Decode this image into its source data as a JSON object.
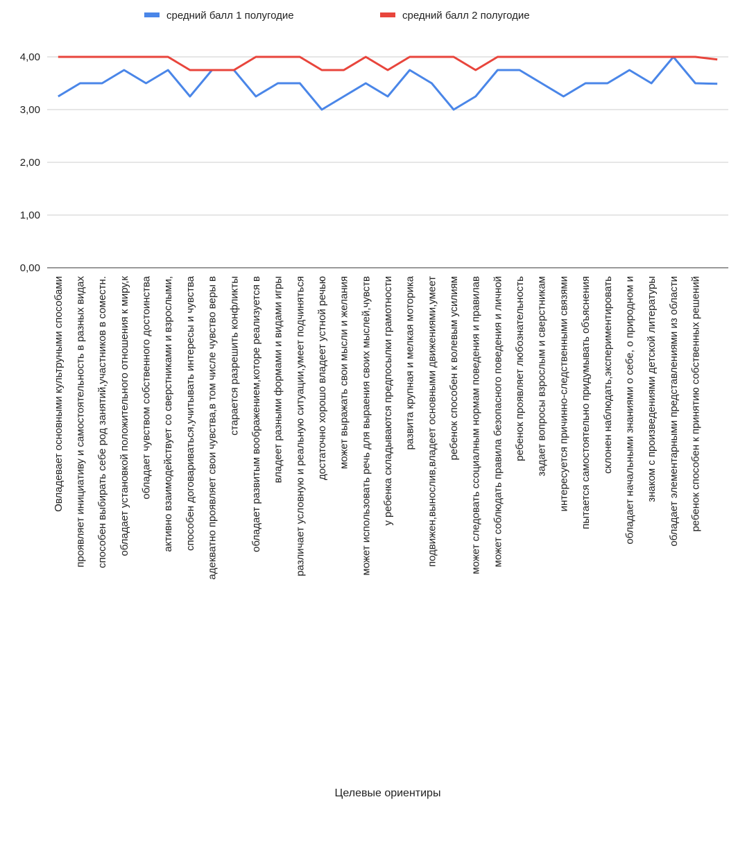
{
  "chart_data": {
    "type": "line",
    "x_label": "Целевые ориентиры",
    "categories": [
      "Овладевает основными культруными способами",
      "проявляет инициативу и самостоятельность в разных видах",
      "способен выбирать себе род занятий,участников в соместн.",
      "обладает установкой положительного отношения к миру,к",
      "обладает чувством собственного достоинства",
      "активно взаимодействует со сверстниками и взрослыми,",
      "способен договариваться,учитывать интересы  и чувства",
      "адекватно проявляет свои чувства,в том числе чувство веры в",
      "старается разрешить конфликты",
      "обладает развитым воображением,которе реализуется в",
      "владеет разными формами и видами игры",
      "различает условную и реальную ситуации,умеет подчиняться",
      "достаточно хорошо владеет устной речью",
      "может выражать свои мысли и желания",
      "может использовать речь для выраения своих мыслей,чувств",
      "у ребенка складываются предпосылки грамотности",
      "развита крупная и мелкая моторика",
      "подвижен,вынослив,владеет основными движениями,умеет",
      "ребенок способен к волевым усилиям",
      "может следовать ссоциалным нормам поведения и правилав",
      "может соблюдать правила безопасного поведения и личной",
      "ребенок проявляет любознательность",
      "задает вопросы взрослым и  сверстникам",
      "интересуется причинно-следственными связями",
      "пытается самостоятельно придумывать объяснения",
      "склонен наблюдать,экспериментировать",
      "обладает начальными знаниями о себе, о природном и",
      "знаком с произведениями детской литературы",
      "обладает элементарными представлениями из области",
      "ребенок способен к принятию собственных решений",
      null
    ],
    "series": [
      {
        "name": "средний балл 1 полугодие",
        "color": "#4a86e8",
        "values": [
          3.25,
          3.5,
          3.5,
          3.75,
          3.5,
          3.75,
          3.25,
          3.75,
          3.75,
          3.25,
          3.5,
          3.5,
          3.0,
          3.25,
          3.5,
          3.25,
          3.75,
          3.5,
          3.0,
          3.25,
          3.75,
          3.75,
          3.5,
          3.25,
          3.5,
          3.5,
          3.75,
          3.5,
          4.0,
          3.5,
          3.49
        ]
      },
      {
        "name": "средний балл 2 полугодие",
        "color": "#e8453c",
        "values": [
          4,
          4,
          4,
          4,
          4,
          4,
          3.75,
          3.75,
          3.75,
          4,
          4,
          4,
          3.75,
          3.75,
          4,
          3.75,
          4,
          4,
          4,
          3.75,
          4,
          4,
          4,
          4,
          4,
          4,
          4,
          4,
          4,
          4,
          3.95
        ]
      }
    ],
    "ylim": [
      0,
      4
    ],
    "yticks": [
      {
        "value": 0,
        "label": "0,00"
      },
      {
        "value": 1,
        "label": "1,00"
      },
      {
        "value": 2,
        "label": "2,00"
      },
      {
        "value": 3,
        "label": "3,00"
      },
      {
        "value": 4,
        "label": "4,00"
      }
    ],
    "grid": true,
    "legend": "top"
  }
}
